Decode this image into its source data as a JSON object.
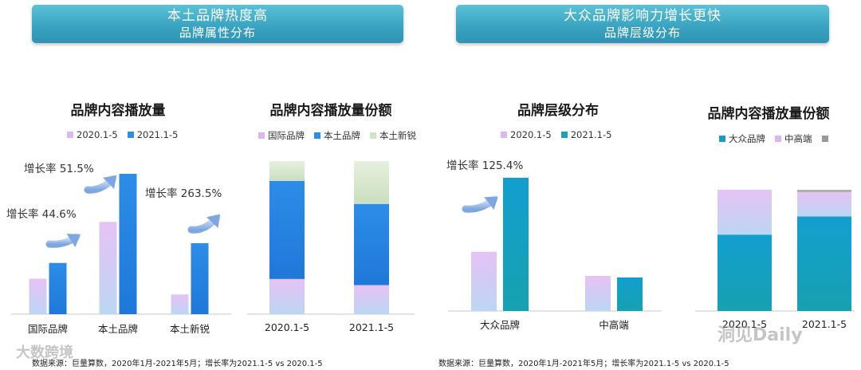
{
  "banners": {
    "left": {
      "line1": "本土品牌热度高",
      "line2": "品牌属性分布"
    },
    "right": {
      "line1": "大众品牌影响力增长更快",
      "line2": "品牌层级分布"
    }
  },
  "colors": {
    "pink_light": "#e8c8f6",
    "blue_light": "#b8d4f4",
    "blue_mid": "#2e8ee6",
    "blue_teal": "#17a2b8",
    "green_light": "#d9ead0",
    "gray": "#999999",
    "arrow": "#8fb6e6"
  },
  "chart_data": [
    {
      "type": "bar",
      "title": "品牌内容播放量",
      "categories": [
        "国际品牌",
        "本土品牌",
        "本土新锐"
      ],
      "series": [
        {
          "name": "2020.1-5",
          "values": [
            45,
            117,
            25
          ]
        },
        {
          "name": "2021.1-5",
          "values": [
            65,
            178,
            90
          ]
        }
      ],
      "ylim": [
        0,
        180
      ],
      "annotations": [
        "增长率 44.6%",
        "增长率 51.5%",
        "增长率 263.5%"
      ]
    },
    {
      "type": "bar",
      "stacked": true,
      "percent": true,
      "title": "品牌内容播放量份额",
      "categories": [
        "2020.1-5",
        "2021.1-5"
      ],
      "series": [
        {
          "name": "国际品牌",
          "values": [
            23,
            19
          ]
        },
        {
          "name": "本土品牌",
          "values": [
            64,
            53
          ]
        },
        {
          "name": "本土新锐",
          "values": [
            13,
            28
          ]
        }
      ]
    },
    {
      "type": "bar",
      "title": "品牌层级分布",
      "categories": [
        "大众品牌",
        "中高端"
      ],
      "series": [
        {
          "name": "2020.1-5",
          "values": [
            76,
            45
          ]
        },
        {
          "name": "2021.1-5",
          "values": [
            171,
            43
          ]
        }
      ],
      "ylim": [
        0,
        175
      ],
      "annotations": [
        "增长率 125.4%"
      ]
    },
    {
      "type": "bar",
      "stacked": true,
      "percent": true,
      "title": "品牌内容播放量份额",
      "categories": [
        "2020.1-5",
        "2021.1-5"
      ],
      "series": [
        {
          "name": "大众品牌",
          "values": [
            63,
            78
          ]
        },
        {
          "name": "中高端",
          "values": [
            37,
            20
          ]
        },
        {
          "name": "",
          "values": [
            0,
            2
          ]
        }
      ]
    }
  ],
  "footer": {
    "left": "数据来源：巨量算数，2020年1月-2021年5月；增长率为2021.1-5 vs 2020.1-5",
    "right": "数据来源：巨量算数，2020年1月-2021年5月；增长率为2021.1-5 vs 2020.1-5"
  },
  "watermarks": {
    "left": "大数跨境",
    "right": "洞见Daily"
  }
}
